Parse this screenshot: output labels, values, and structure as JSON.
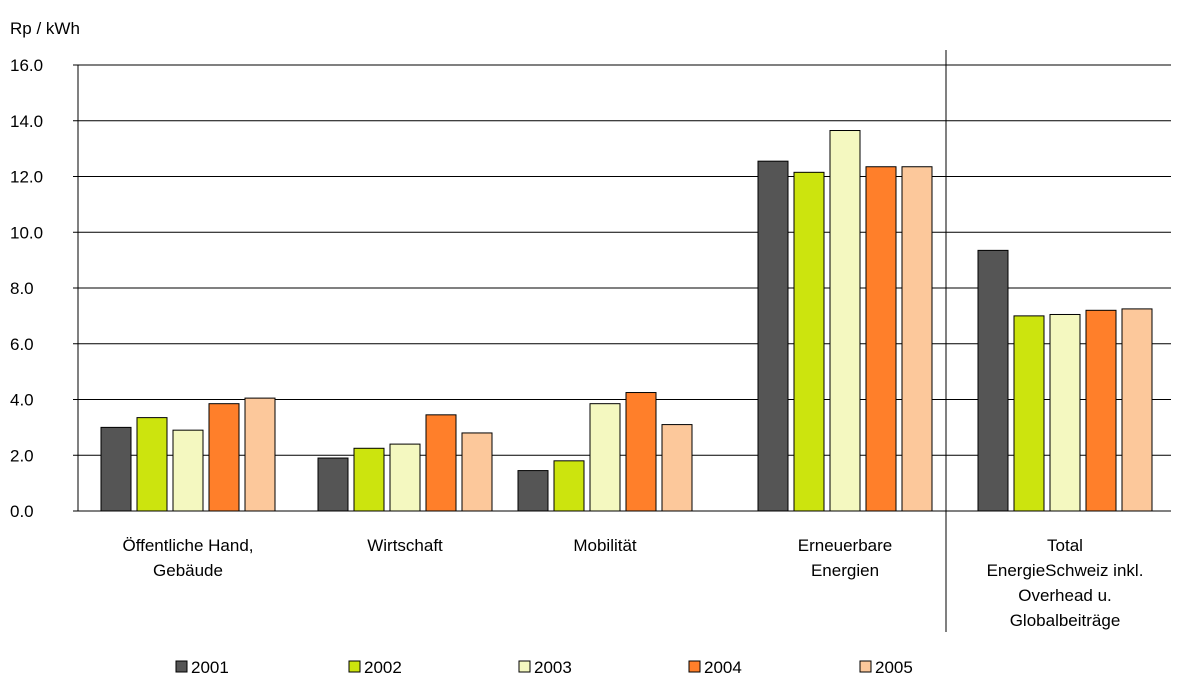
{
  "chart_data": {
    "type": "bar",
    "ylabel": "Rp / kWh",
    "ylim": [
      0,
      16
    ],
    "yticks": [
      "0.0",
      "2.0",
      "4.0",
      "6.0",
      "8.0",
      "10.0",
      "12.0",
      "14.0",
      "16.0"
    ],
    "grid": true,
    "legend_position": "bottom",
    "categories": [
      [
        "Öffentliche Hand,",
        "Gebäude"
      ],
      [
        "Wirtschaft"
      ],
      [
        "Mobilität"
      ],
      [
        "Erneuerbare",
        "Energien"
      ],
      [
        "Total",
        "EnergieSchweiz inkl.",
        "Overhead u.",
        "Globalbeiträge"
      ]
    ],
    "series": [
      {
        "name": "2001",
        "color": "#555555",
        "values": [
          3.0,
          1.9,
          1.45,
          12.55,
          9.35
        ]
      },
      {
        "name": "2002",
        "color": "#cce40e",
        "values": [
          3.35,
          2.25,
          1.8,
          12.15,
          7.0
        ]
      },
      {
        "name": "2003",
        "color": "#f4f8c0",
        "values": [
          2.9,
          2.4,
          3.85,
          13.65,
          7.05
        ]
      },
      {
        "name": "2004",
        "color": "#ff7f2a",
        "values": [
          3.85,
          3.45,
          4.25,
          12.35,
          7.2
        ]
      },
      {
        "name": "2005",
        "color": "#fcc89b",
        "values": [
          4.05,
          2.8,
          3.1,
          12.35,
          7.25
        ]
      }
    ]
  }
}
